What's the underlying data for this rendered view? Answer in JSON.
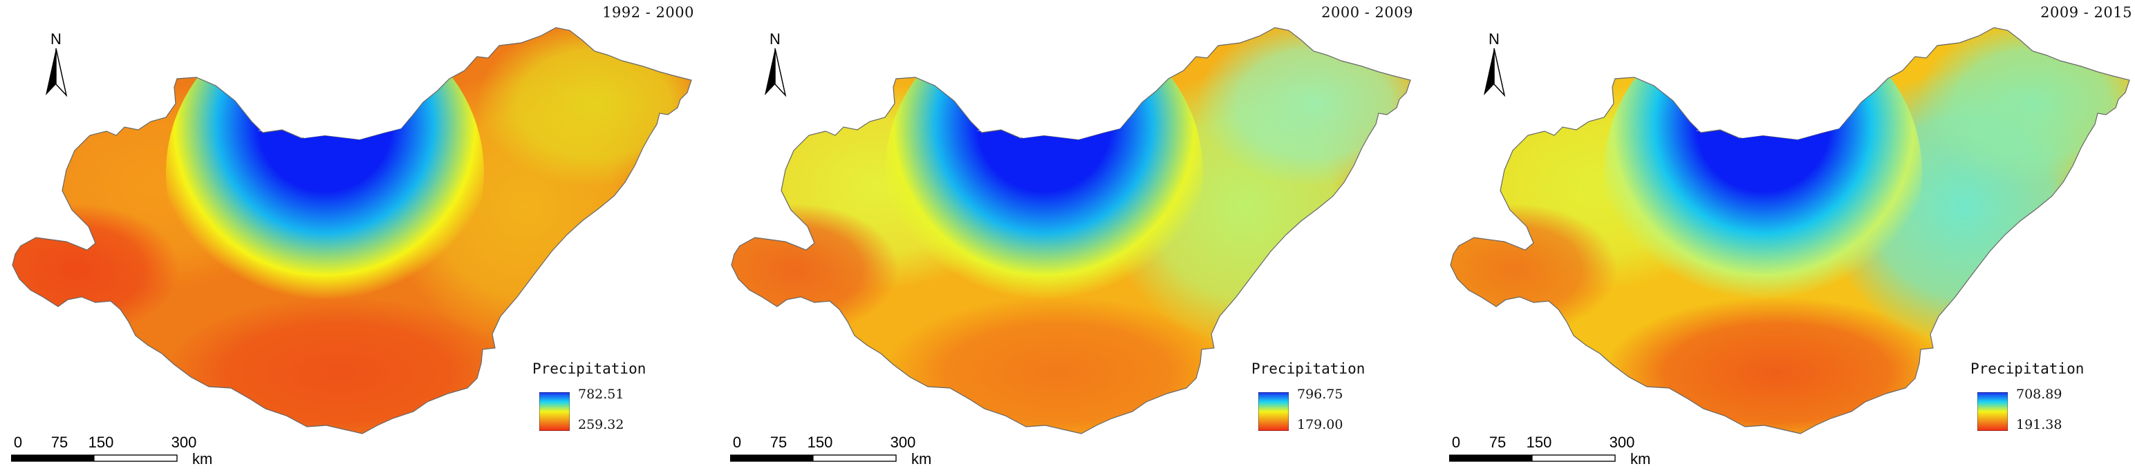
{
  "panels": [
    {
      "period": "1992 - 2000",
      "legend_title": "Precipitation",
      "legend_max": "782.51",
      "legend_min": "259.32",
      "north_label": "N",
      "scale_ticks": [
        "0",
        "75",
        "150",
        "300"
      ],
      "scale_unit": "km",
      "palette": {
        "north_west": "#f49a1a",
        "west_lobe": "#ee4a17",
        "center": "#ef7a18",
        "south": "#ee5318",
        "east": "#f2b21b",
        "north_east": "#e8d21e",
        "bay_core": "#0a1ff5",
        "bay_mid": "#17b6f0",
        "bay_rim": "#f6f417"
      }
    },
    {
      "period": "2000 - 2009",
      "legend_title": "Precipitation",
      "legend_max": "796.75",
      "legend_min": "179.00",
      "north_label": "N",
      "scale_ticks": [
        "0",
        "75",
        "150",
        "300"
      ],
      "scale_unit": "km",
      "palette": {
        "north_west": "#e6f03a",
        "west_lobe": "#ee6a1c",
        "center": "#f6b018",
        "south": "#f27a19",
        "east": "#bff06a",
        "north_east": "#9fedaa",
        "bay_core": "#0a1ff5",
        "bay_mid": "#17b6f0",
        "bay_rim": "#e9f52a"
      }
    },
    {
      "period": "2009 - 2015",
      "legend_title": "Precipitation",
      "legend_max": "708.89",
      "legend_min": "191.38",
      "north_label": "N",
      "scale_ticks": [
        "0",
        "75",
        "150",
        "300"
      ],
      "scale_unit": "km",
      "palette": {
        "north_west": "#e4ef35",
        "west_lobe": "#ef7a1a",
        "center": "#f6c118",
        "south": "#ef5e18",
        "east": "#72e7c8",
        "north_east": "#8eeaa9",
        "bay_core": "#0a1ff5",
        "bay_mid": "#18c6ef",
        "bay_rim": "#c9f266"
      }
    }
  ],
  "ramp_colors": [
    "#1a2cf2",
    "#1ad4f2",
    "#f4f41a",
    "#f2901a",
    "#ef2a18"
  ]
}
